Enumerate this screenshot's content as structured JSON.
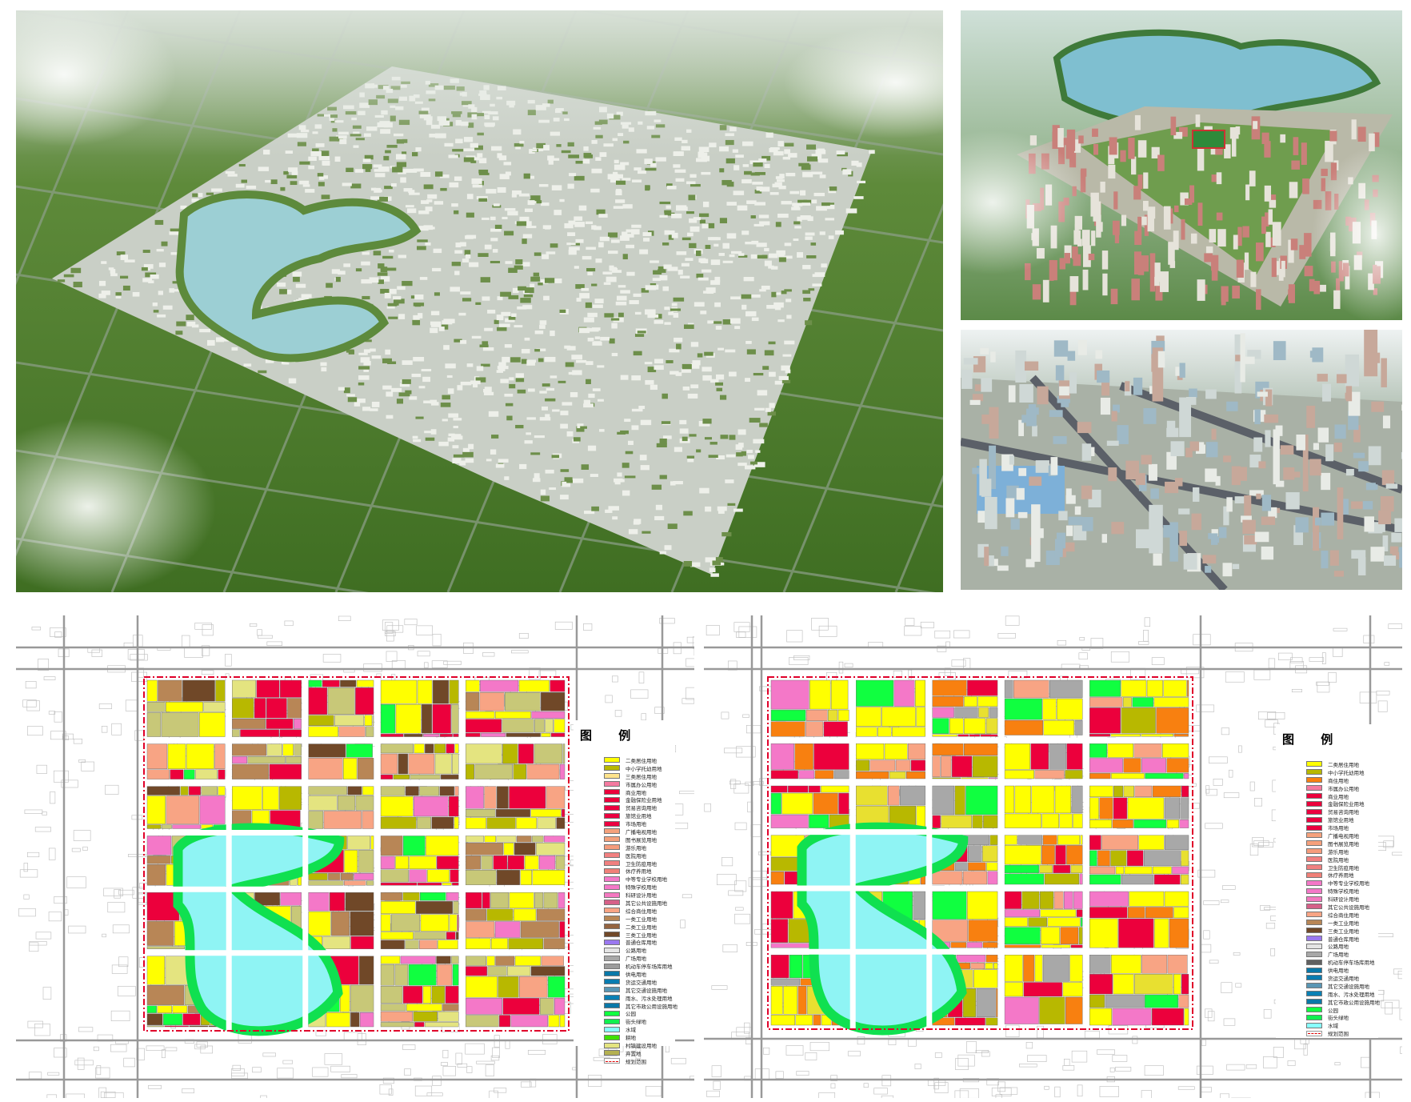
{
  "panels": {
    "aerial_city_overview": {
      "icon": "aerial-render-city-with-lake"
    },
    "aerial_residential_lakeside": {
      "icon": "aerial-render-residential-district"
    },
    "aerial_downtown": {
      "icon": "aerial-render-high-rise-district"
    }
  },
  "colors": {
    "boundary": "#e0002a",
    "water": "#8ff4f4",
    "field": "#4f7a2e",
    "road": "#ffffff"
  },
  "map_current": {
    "legend_title": "图 例",
    "legend": [
      {
        "label": "二类居住用地",
        "color": "#ffff00"
      },
      {
        "label": "中小学托幼用地",
        "color": "#b8b800"
      },
      {
        "label": "三类居住用地",
        "color": "#ffe38c"
      },
      {
        "label": "市属办公用地",
        "color": "#f47aa0"
      },
      {
        "label": "商业用地",
        "color": "#ec003c"
      },
      {
        "label": "金融保险业用地",
        "color": "#ec003c"
      },
      {
        "label": "贸易咨询用地",
        "color": "#ec0040"
      },
      {
        "label": "旅馆业用地",
        "color": "#ec0040"
      },
      {
        "label": "市场用地",
        "color": "#ec0040"
      },
      {
        "label": "广播电视用地",
        "color": "#f5a17c"
      },
      {
        "label": "图书展览用地",
        "color": "#f5a07c"
      },
      {
        "label": "游乐用地",
        "color": "#f59c7c"
      },
      {
        "label": "医院用地",
        "color": "#f28080"
      },
      {
        "label": "卫生防疫用地",
        "color": "#f08080"
      },
      {
        "label": "休疗养用地",
        "color": "#f08078"
      },
      {
        "label": "中等专业学校用地",
        "color": "#f478c8"
      },
      {
        "label": "特殊学校用地",
        "color": "#f478c8"
      },
      {
        "label": "科研设计用地",
        "color": "#f478c0"
      },
      {
        "label": "其它公共设施用地",
        "color": "#d66088"
      },
      {
        "label": "综合商住用地",
        "color": "#f8a484"
      },
      {
        "label": "一类工业用地",
        "color": "#b88656"
      },
      {
        "label": "二类工业用地",
        "color": "#946440"
      },
      {
        "label": "三类工业用地",
        "color": "#704828"
      },
      {
        "label": "普通仓库用地",
        "color": "#9a78f0"
      },
      {
        "label": "公路用地",
        "color": "#e4e4e4"
      },
      {
        "label": "广场用地",
        "color": "#a8a8a8"
      },
      {
        "label": "机动车停车场库用地",
        "color": "#9c9c9c"
      },
      {
        "label": "供电用地",
        "color": "#0a78a8"
      },
      {
        "label": "货运交通用地",
        "color": "#0a7cb0"
      },
      {
        "label": "其它交通设施用地",
        "color": "#5a96b4"
      },
      {
        "label": "雨水、污水处理用地",
        "color": "#0a80b4"
      },
      {
        "label": "其它市政公用设施用地",
        "color": "#0a78a8"
      },
      {
        "label": "公园",
        "color": "#10ff40"
      },
      {
        "label": "街头绿地",
        "color": "#10f050"
      },
      {
        "label": "水域",
        "color": "#88ffff"
      },
      {
        "label": "耕地",
        "color": "#40e000"
      },
      {
        "label": "村镇建设用地",
        "color": "#e4e480"
      },
      {
        "label": "弃置地",
        "color": "#b4b050"
      },
      {
        "label": "规划范围",
        "color": "boundary"
      }
    ]
  },
  "map_planned": {
    "legend_title": "图 例",
    "legend": [
      {
        "label": "二类居住用地",
        "color": "#ffff00"
      },
      {
        "label": "中小学托幼用地",
        "color": "#b8b800"
      },
      {
        "label": "商住用地",
        "color": "#f88010"
      },
      {
        "label": "市属办公用地",
        "color": "#f47aa0"
      },
      {
        "label": "商业用地",
        "color": "#ec003c"
      },
      {
        "label": "金融保险业用地",
        "color": "#ec003c"
      },
      {
        "label": "贸易咨询用地",
        "color": "#ec0040"
      },
      {
        "label": "旅馆业用地",
        "color": "#ec0040"
      },
      {
        "label": "市场用地",
        "color": "#ec0040"
      },
      {
        "label": "广播电视用地",
        "color": "#f5a17c"
      },
      {
        "label": "图书展览用地",
        "color": "#f5a07c"
      },
      {
        "label": "游乐用地",
        "color": "#f59c7c"
      },
      {
        "label": "医院用地",
        "color": "#f28080"
      },
      {
        "label": "卫生防疫用地",
        "color": "#f08080"
      },
      {
        "label": "休疗养用地",
        "color": "#f08078"
      },
      {
        "label": "中等专业学校用地",
        "color": "#f478c8"
      },
      {
        "label": "特殊学校用地",
        "color": "#f478c8"
      },
      {
        "label": "科研设计用地",
        "color": "#f478c0"
      },
      {
        "label": "其它公共设施用地",
        "color": "#d66088"
      },
      {
        "label": "综合商住用地",
        "color": "#f8a484"
      },
      {
        "label": "一类工业用地",
        "color": "#b88656"
      },
      {
        "label": "三类工业用地",
        "color": "#704828"
      },
      {
        "label": "普通仓库用地",
        "color": "#9a78f0"
      },
      {
        "label": "公路用地",
        "color": "#e4e4e4"
      },
      {
        "label": "广场用地",
        "color": "#a8a8a8"
      },
      {
        "label": "机动车停车场库用地",
        "color": "#606060"
      },
      {
        "label": "供电用地",
        "color": "#0a78a8"
      },
      {
        "label": "货运交通用地",
        "color": "#0a7cb0"
      },
      {
        "label": "其它交通设施用地",
        "color": "#5a96b4"
      },
      {
        "label": "雨水、污水处理用地",
        "color": "#0a80b4"
      },
      {
        "label": "其它市政公用设施用地",
        "color": "#0a78a8"
      },
      {
        "label": "公园",
        "color": "#10ff40"
      },
      {
        "label": "街头绿地",
        "color": "#10f050"
      },
      {
        "label": "水域",
        "color": "#88ffff"
      },
      {
        "label": "规划范围",
        "color": "boundary"
      }
    ]
  }
}
